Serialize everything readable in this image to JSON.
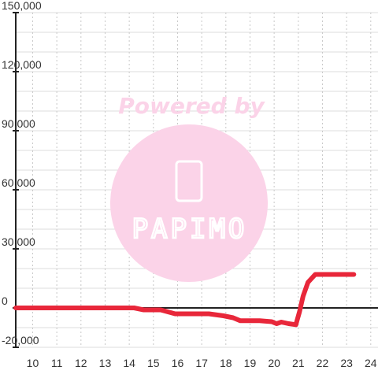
{
  "watermark": {
    "caption": "Powered by",
    "brand": "PAPIMO",
    "color": "#fbd3e8"
  },
  "chart_data": {
    "type": "line",
    "title": "",
    "xlabel": "",
    "ylabel": "",
    "xlim": [
      9.3,
      24.3
    ],
    "ylim": [
      -20000,
      150000
    ],
    "x_ticks": [
      10,
      11,
      12,
      13,
      14,
      15,
      16,
      17,
      18,
      19,
      20,
      21,
      22,
      23,
      24
    ],
    "y_ticks": [
      -20000,
      0,
      30000,
      60000,
      90000,
      120000,
      150000
    ],
    "x_tick_labels": [
      "10",
      "11",
      "12",
      "13",
      "14",
      "15",
      "16",
      "17",
      "18",
      "19",
      "20",
      "21",
      "22",
      "23",
      "24"
    ],
    "y_tick_labels": [
      "-20,000",
      "0",
      "30,000",
      "60,000",
      "90,000",
      "120,000",
      "150,000"
    ],
    "grid": true,
    "legend": "none",
    "series": [
      {
        "color": "#e8273a",
        "points": [
          [
            9.3,
            0
          ],
          [
            14.2,
            0
          ],
          [
            14.6,
            -1000
          ],
          [
            15.3,
            -1000
          ],
          [
            15.9,
            -3000
          ],
          [
            17.3,
            -3000
          ],
          [
            17.9,
            -4000
          ],
          [
            18.3,
            -5000
          ],
          [
            18.6,
            -6500
          ],
          [
            19.4,
            -6500
          ],
          [
            19.9,
            -7000
          ],
          [
            20.1,
            -8000
          ],
          [
            20.3,
            -7200
          ],
          [
            20.6,
            -8000
          ],
          [
            20.9,
            -8500
          ],
          [
            21.05,
            -2000
          ],
          [
            21.2,
            6000
          ],
          [
            21.4,
            13000
          ],
          [
            21.7,
            17000
          ],
          [
            23.3,
            17000
          ]
        ]
      }
    ]
  }
}
